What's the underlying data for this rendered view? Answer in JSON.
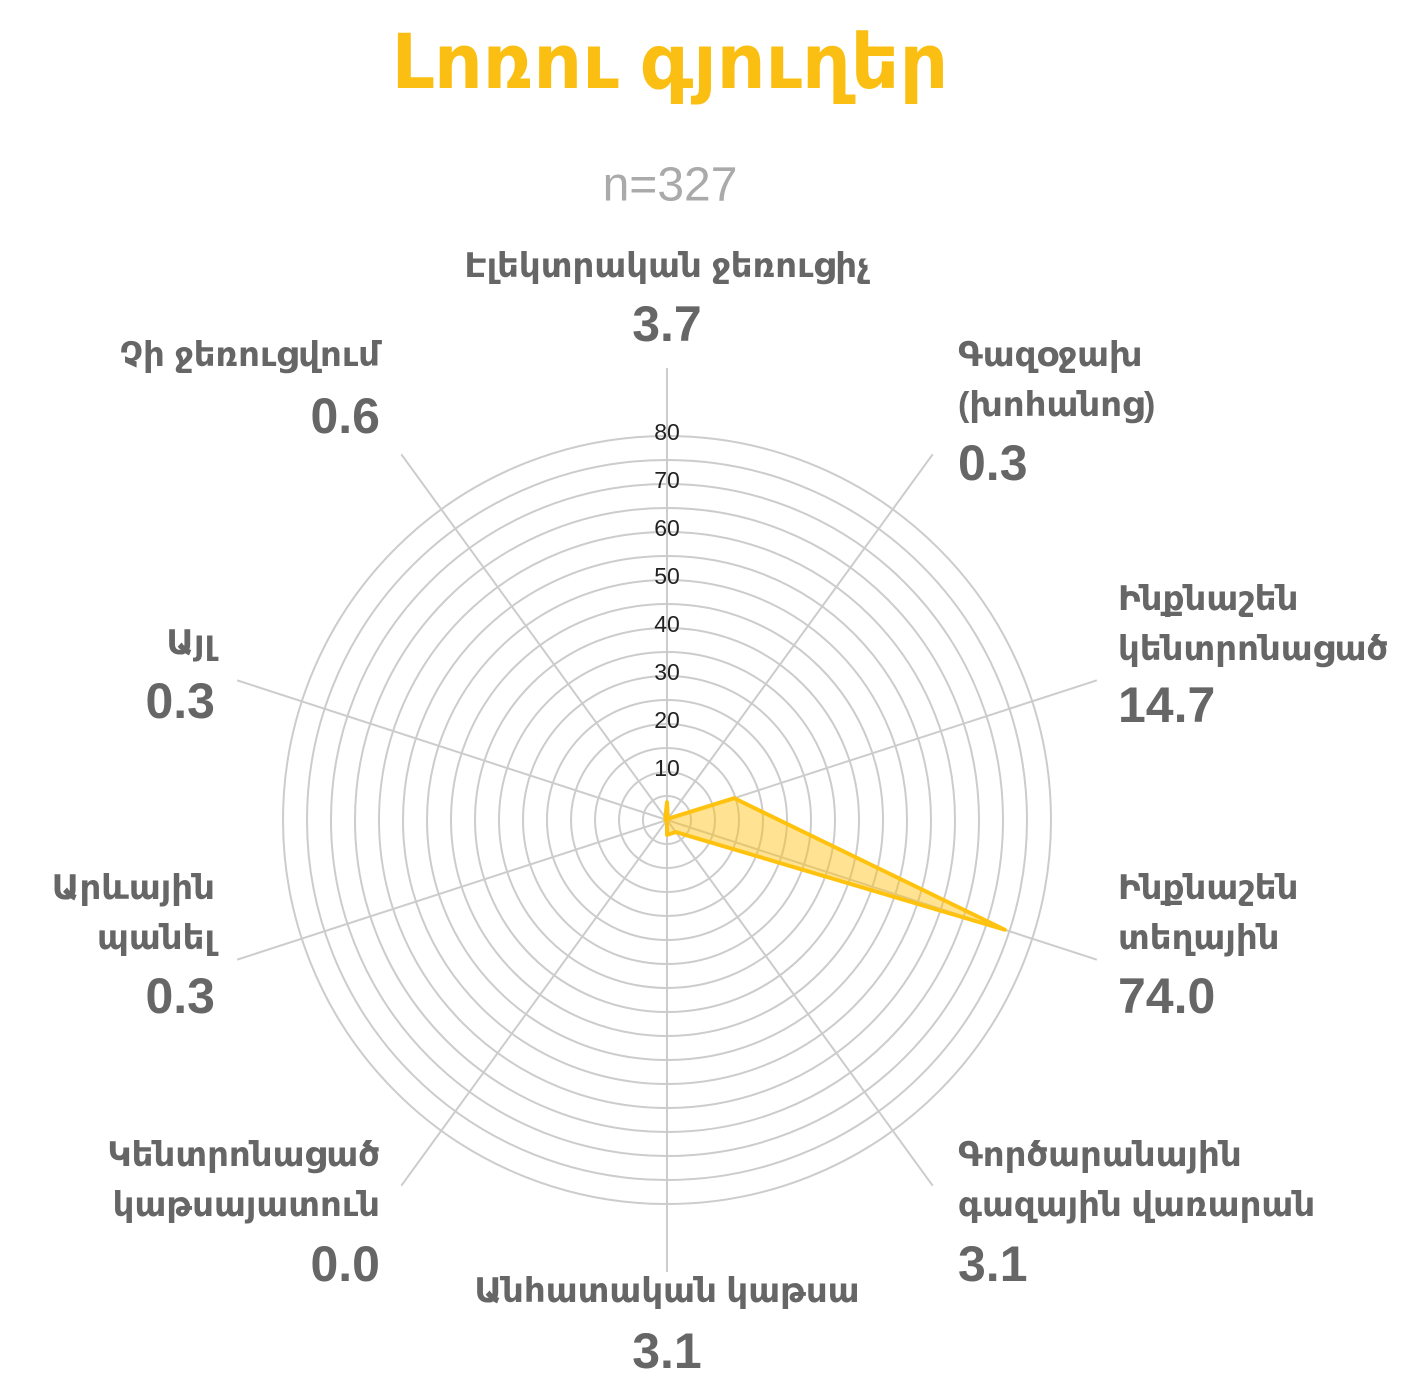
{
  "chart_data": {
    "type": "radar",
    "title": "Լոռու գյուղեր",
    "subtitle": "n=327",
    "categories": [
      [
        "Էլեկտրական ջեռուցիչ"
      ],
      [
        "Գազօջախ",
        "(խոհանոց)"
      ],
      [
        "Ինքնաշեն",
        "կենտրոնացած"
      ],
      [
        "Ինքնաշեն",
        "տեղային"
      ],
      [
        "Գործարանային",
        "գազային վառարան"
      ],
      [
        "Անհատական կաթսա"
      ],
      [
        "Կենտրոնացած",
        "կաթսայատուն"
      ],
      [
        "Արևային",
        "պանել"
      ],
      [
        "Այլ"
      ],
      [
        "Չի ջեռուցվում"
      ]
    ],
    "values": [
      3.7,
      0.3,
      14.7,
      74.0,
      3.1,
      3.1,
      0.0,
      0.3,
      0.3,
      0.6
    ],
    "value_labels": [
      "3.7",
      "0.3",
      "14.7",
      "74.0",
      "3.1",
      "3.1",
      "0.0",
      "0.3",
      "0.3",
      "0.6"
    ],
    "color": "#ffc20e",
    "ylim": [
      0,
      80
    ],
    "yticks": [
      10,
      20,
      30,
      40,
      50,
      60,
      70,
      80
    ],
    "grid_rings": [
      5,
      10,
      15,
      20,
      25,
      30,
      35,
      40,
      45,
      50,
      55,
      60,
      65,
      70,
      75,
      80
    ],
    "grid": true
  }
}
